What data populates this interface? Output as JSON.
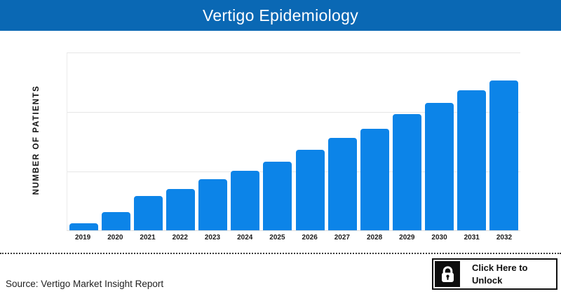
{
  "header": {
    "title": "Vertigo Epidemiology"
  },
  "colors": {
    "header_bg": "#0a68b4",
    "bar": "#0c84e8",
    "gridline": "#e6e6e6",
    "title_text": "#ffffff",
    "axis_text": "#1a1a1a"
  },
  "chart_data": {
    "type": "bar",
    "title": "Vertigo Epidemiology",
    "categories": [
      "2019",
      "2020",
      "2021",
      "2022",
      "2023",
      "2024",
      "2025",
      "2026",
      "2027",
      "2028",
      "2029",
      "2030",
      "2031",
      "2032"
    ],
    "values": [
      3.9,
      10.2,
      19.2,
      23.1,
      28.6,
      33.3,
      38.4,
      45.1,
      51.8,
      56.9,
      65.1,
      71.4,
      78.4,
      83.9
    ],
    "values_note": "y-axis numeric tick labels are not shown in the chart; values estimated as percent of plot height",
    "xlabel": "",
    "ylabel": "NUMBER OF PATIENTS",
    "ylim": [
      0,
      100
    ],
    "y_tick_labels_visible": false,
    "grid": "horizontal",
    "legend": "none",
    "bar_color": "#0c84e8"
  },
  "footer": {
    "source": "Source: Vertigo Market Insight Report",
    "unlock_label": "Click Here to Unlock",
    "lock_icon": "lock-icon"
  }
}
